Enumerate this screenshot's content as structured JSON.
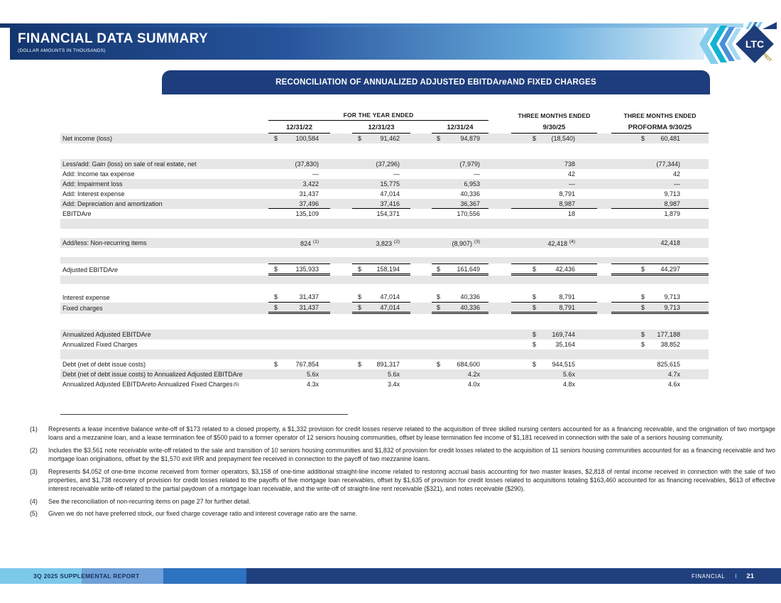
{
  "header": {
    "title": "FINANCIAL DATA SUMMARY",
    "subtitle": "(DOLLAR AMOUNTS IN THOUSANDS)",
    "logo": {
      "text": "LTC",
      "reit": "REIT"
    }
  },
  "banner": {
    "prefix": "RECONCILIATION OF ANNUALIZED ADJUSTED EBITDA",
    "italic": "re",
    "suffix": " AND FIXED CHARGES"
  },
  "table": {
    "group_header": "FOR THE YEAR ENDED",
    "columns": [
      {
        "label": "12/31/22"
      },
      {
        "label": "12/31/23"
      },
      {
        "label": "12/31/24"
      },
      {
        "label": "THREE MONTHS ENDED",
        "sub": "9/30/25"
      },
      {
        "label": "THREE MONTHS ENDED",
        "sub": "PROFORMA 9/30/25"
      }
    ],
    "rows": [
      {
        "label": "Net income (loss)",
        "shade": "gray",
        "h": 14,
        "cells": [
          {
            "d": "$",
            "v": "100,584"
          },
          {
            "d": "$",
            "v": "91,462"
          },
          {
            "d": "$",
            "v": "94,879"
          },
          {
            "d": "$",
            "v": "(18,540)"
          },
          {
            "d": "$",
            "v": "60,481"
          }
        ]
      },
      {
        "label": "",
        "shade": "white",
        "h": 22,
        "cells": null
      },
      {
        "label": "Less/add: Gain (loss) on sale of real estate, net",
        "shade": "gray",
        "h": 14,
        "cells": [
          {
            "v": "(37,830)"
          },
          {
            "v": "(37,296)"
          },
          {
            "v": "(7,979)"
          },
          {
            "v": "738"
          },
          {
            "v": "(77,344)"
          }
        ]
      },
      {
        "label": "Add: Income tax expense",
        "shade": "white",
        "h": 14,
        "cells": [
          {
            "v": "—"
          },
          {
            "v": "—"
          },
          {
            "v": "—"
          },
          {
            "v": "42"
          },
          {
            "v": "42"
          }
        ]
      },
      {
        "label": "Add:  Impairment loss",
        "shade": "gray",
        "h": 14,
        "cells": [
          {
            "v": "3,422"
          },
          {
            "v": "15,775"
          },
          {
            "v": "6,953"
          },
          {
            "v": "—"
          },
          {
            "v": "—"
          }
        ]
      },
      {
        "label": "Add:  Interest expense",
        "shade": "white",
        "h": 14,
        "cells": [
          {
            "v": "31,437"
          },
          {
            "v": "47,014"
          },
          {
            "v": "40,336"
          },
          {
            "v": "8,791"
          },
          {
            "v": "9,713"
          }
        ]
      },
      {
        "label": "Add:  Depreciation and amortization",
        "shade": "gray",
        "h": 14,
        "rule": "single",
        "cells": [
          {
            "v": "37,496"
          },
          {
            "v": "37,416"
          },
          {
            "v": "36,367"
          },
          {
            "v": "8,987"
          },
          {
            "v": "8,987"
          }
        ]
      },
      {
        "label": "EBITDAre",
        "shade": "white",
        "h": 14,
        "cells": [
          {
            "v": "135,109"
          },
          {
            "v": "154,371"
          },
          {
            "v": "170,556"
          },
          {
            "v": "18"
          },
          {
            "v": "1,879"
          }
        ]
      },
      {
        "label": "",
        "shade": "gray",
        "h": 14,
        "cells": null
      },
      {
        "label": "",
        "shade": "white",
        "h": 13,
        "cells": null
      },
      {
        "label": "Add/less:  Non-recurring items",
        "shade": "gray",
        "h": 14,
        "cells": [
          {
            "v": "824",
            "sup": "(1)"
          },
          {
            "v": "3,823",
            "sup": "(2)"
          },
          {
            "v": "(8,907)",
            "sup": "(3)"
          },
          {
            "v": "42,418",
            "sup": "(4)"
          },
          {
            "v": "42,418"
          }
        ]
      },
      {
        "label": "",
        "shade": "white",
        "h": 13,
        "cells": null
      },
      {
        "label": "",
        "shade": "gray",
        "h": 9,
        "cells": null
      },
      {
        "label": "Adjusted EBITDAre",
        "shade": "white",
        "h": 17,
        "rule": "total",
        "cells": [
          {
            "d": "$",
            "v": "135,933"
          },
          {
            "d": "$",
            "v": "158,194"
          },
          {
            "d": "$",
            "v": "161,649"
          },
          {
            "d": "$",
            "v": "42,436"
          },
          {
            "d": "$",
            "v": "44,297"
          }
        ]
      },
      {
        "label": "",
        "shade": "gray",
        "h": 12,
        "cells": null
      },
      {
        "label": "",
        "shade": "white",
        "h": 11,
        "cells": null
      },
      {
        "label": "Interest expense",
        "shade": "white",
        "h": 15,
        "rule": "single",
        "cells": [
          {
            "d": "$",
            "v": "31,437"
          },
          {
            "d": "$",
            "v": "47,014"
          },
          {
            "d": "$",
            "v": "40,336"
          },
          {
            "d": "$",
            "v": "8,791"
          },
          {
            "d": "$",
            "v": "9,713"
          }
        ]
      },
      {
        "label": "Fixed charges",
        "shade": "gray",
        "h": 16,
        "rule": "double",
        "cells": [
          {
            "d": "$",
            "v": "31,437"
          },
          {
            "d": "$",
            "v": "47,014"
          },
          {
            "d": "$",
            "v": "40,336"
          },
          {
            "d": "$",
            "v": "8,791"
          },
          {
            "d": "$",
            "v": "9,713"
          }
        ]
      },
      {
        "label": "",
        "shade": "white",
        "h": 22,
        "cells": null
      },
      {
        "label": "Annualized Adjusted EBITDAre",
        "shade": "gray",
        "h": 14,
        "cells": [
          null,
          null,
          null,
          {
            "d": "$",
            "v": "169,744"
          },
          {
            "d": "$",
            "v": "177,188"
          }
        ]
      },
      {
        "label": "Annualized Fixed Charges",
        "shade": "white",
        "h": 14,
        "cells": [
          null,
          null,
          null,
          {
            "d": "$",
            "v": "35,164"
          },
          {
            "d": "$",
            "v": "38,852"
          }
        ]
      },
      {
        "label": "",
        "shade": "gray",
        "h": 14,
        "cells": null
      },
      {
        "label": "Debt (net of debt issue costs)",
        "shade": "white",
        "h": 14,
        "cells": [
          {
            "d": "$",
            "v": "767,854"
          },
          {
            "d": "$",
            "v": "891,317"
          },
          {
            "d": "$",
            "v": "684,600"
          },
          {
            "d": "$",
            "v": "944,515"
          },
          {
            "v": "825,615"
          }
        ]
      },
      {
        "label": "Debt (net of debt issue costs) to Annualized Adjusted EBITDAre",
        "shade": "gray",
        "h": 14,
        "cells": [
          {
            "v": "5.6x"
          },
          {
            "v": "5.6x"
          },
          {
            "v": "4.2x"
          },
          {
            "v": "5.6x"
          },
          {
            "v": "4.7x"
          }
        ]
      },
      {
        "label": "Annualized Adjusted EBITDAre to Annualized Fixed Charges",
        "labelSup": "(5)",
        "shade": "white",
        "h": 14,
        "cells": [
          {
            "v": "4.3x"
          },
          {
            "v": "3.4x"
          },
          {
            "v": "4.0x"
          },
          {
            "v": "4.8x"
          },
          {
            "v": "4.6x"
          }
        ]
      }
    ]
  },
  "footnotes": [
    {
      "num": "(1)",
      "text": "Represents a lease incentive balance write-off of $173 related to a closed property, a $1,332 provision for credit losses reserve related to the acquisition of three skilled nursing centers accounted for as a financing receivable, and the origination of two mortgage loans and a mezzanine loan, and a lease termination fee of $500 paid to a former operator of 12 seniors housing communities, offset by lease termination fee income of $1,181 received in connection with the sale of a seniors housing community."
    },
    {
      "num": "(2)",
      "text": "Includes the $3,561 note receivable write-off related to the sale and transition of 10 seniors housing communities and $1,832 of provision for credit losses related to the acquisition of 11 seniors housing communities accounted for as a financing receivable and two mortgage loan originations, offset by the $1,570 exit IRR and prepayment fee received in connection to the payoff of two mezzanine loans."
    },
    {
      "num": "(3)",
      "text": "Represents $4,052 of one-time income received from former operators, $3,158 of one-time additional straight-line income related to restoring accrual basis accounting for two master leases, $2,818 of rental income received in connection with the sale of two properties, and $1,738 recovery of provision for credit losses related to the payoffs of five mortgage loan receivables, offset by $1,635 of provision for credit losses related to acquisitions totaling $163,460 accounted for as financing receivables, $613 of effective interest receivable write-off related to the partial paydown of a mortgage loan receivable, and the write-off of straight-line rent receivable ($321), and notes receivable ($290)."
    },
    {
      "num": "(4)",
      "text": "See the reconciliation of non-recurring items on page 27 for further detail."
    },
    {
      "num": "(5)",
      "text": "Given we do not have preferred stock, our fixed charge coverage ratio and interest coverage ratio are the same."
    }
  ],
  "footer": {
    "left": "3Q 2025 SUPPLEMENTAL REPORT",
    "section": "FINANCIAL",
    "sep": "I",
    "page": "21"
  },
  "colors": {
    "navy": "#1e3d7c",
    "header_gradient_start": "#14356d",
    "header_gradient_end": "#d9edf8",
    "row_shade": "#e6e6e6",
    "footer_seg1": "#7cc9ea",
    "footer_seg2": "#6fa0d8",
    "footer_seg3": "#2e72c2",
    "footer_seg4": "#203f7d",
    "logo_gold": "#a98a35"
  }
}
